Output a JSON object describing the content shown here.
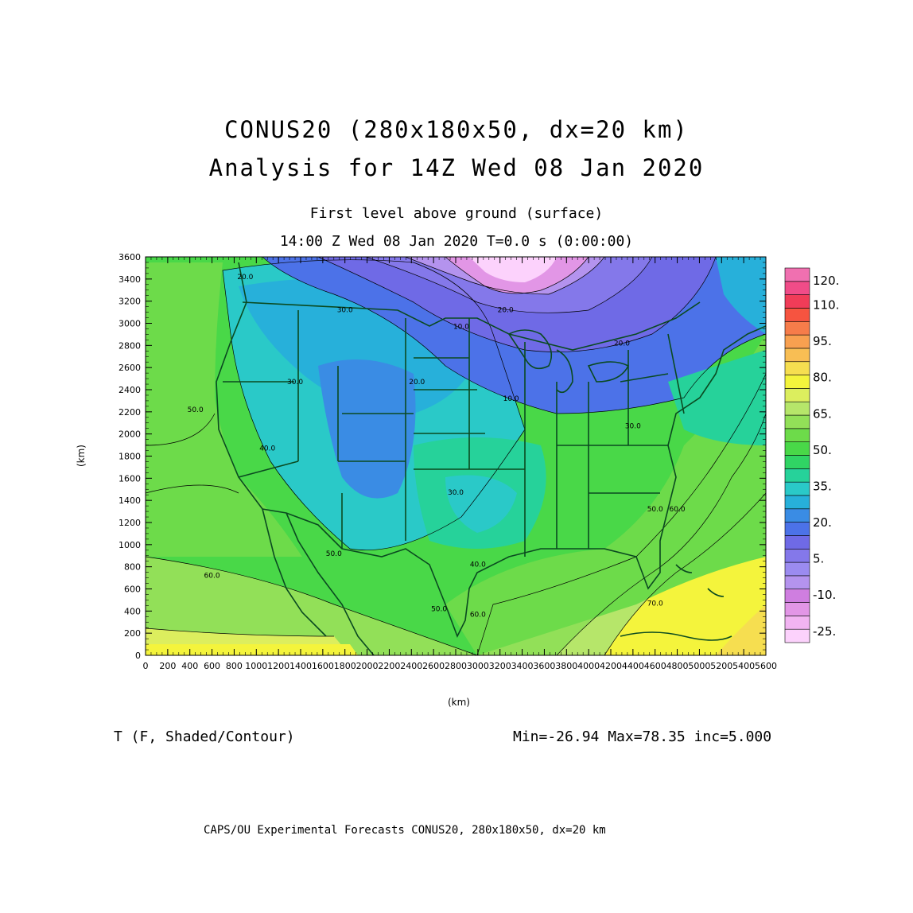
{
  "title_line1": "CONUS20 (280x180x50, dx=20 km)",
  "title_line2": "Analysis for 14Z Wed 08 Jan 2020",
  "subtitle_line1": "First level above ground (surface)",
  "subtitle_line2": "14:00 Z Wed 08 Jan 2020   T=0.0 s (0:00:00)",
  "field_label": "T (F, Shaded/Contour)",
  "stats": "Min=-26.94 Max=78.35 inc=5.000",
  "credit": "CAPS/OU Experimental Forecasts  CONUS20, 280x180x50, dx=20 km",
  "axes": {
    "x_label": "(km)",
    "y_label": "(km)",
    "x_ticks": [
      0,
      200,
      400,
      600,
      800,
      1000,
      1200,
      1400,
      1600,
      1800,
      2000,
      2200,
      2400,
      2600,
      2800,
      3000,
      3200,
      3400,
      3600,
      3800,
      4000,
      4200,
      4400,
      4600,
      4800,
      5000,
      5200,
      5400,
      5600
    ],
    "x_tick_labels": [
      "0",
      "200",
      "400",
      "600",
      "800",
      "1000",
      "1200",
      "1400",
      "1600",
      "1800",
      "2000",
      "2200",
      "2400",
      "2600",
      "2800",
      "3000",
      "3200",
      "3400",
      "3600",
      "3800",
      "4000",
      "4200",
      "4400",
      "4600",
      "4800",
      "5000",
      "5200",
      "5400",
      "5600"
    ],
    "y_ticks": [
      0,
      200,
      400,
      600,
      800,
      1000,
      1200,
      1400,
      1600,
      1800,
      2000,
      2200,
      2400,
      2600,
      2800,
      3000,
      3200,
      3400,
      3600
    ],
    "y_tick_labels": [
      "0",
      "200",
      "400",
      "600",
      "800",
      "1000",
      "1200",
      "1400",
      "1600",
      "1800",
      "2000",
      "2200",
      "2400",
      "2600",
      "2800",
      "3000",
      "3200",
      "3400",
      "3600"
    ],
    "xlim": [
      0,
      5600
    ],
    "ylim": [
      0,
      3600
    ]
  },
  "colorbar": {
    "colors": [
      "#fcd2fc",
      "#f2b4f2",
      "#e296e6",
      "#cf7ee0",
      "#b493ee",
      "#9b8bf0",
      "#8478ea",
      "#6f6ae6",
      "#4c72e8",
      "#3a8ce4",
      "#27b0da",
      "#2ac9c8",
      "#26d29a",
      "#30d464",
      "#49d848",
      "#6ddb4a",
      "#92e058",
      "#b6e66a",
      "#dcee5e",
      "#f4f43c",
      "#f6de50",
      "#f8be54",
      "#f8a050",
      "#f67c4a",
      "#f65440",
      "#f03c58",
      "#f04c88",
      "#f070b0"
    ],
    "labels": [
      {
        "value": -25,
        "text": "-25."
      },
      {
        "value": -10,
        "text": "-10."
      },
      {
        "value": 5,
        "text": "5."
      },
      {
        "value": 20,
        "text": "20."
      },
      {
        "value": 35,
        "text": "35."
      },
      {
        "value": 50,
        "text": "50."
      },
      {
        "value": 65,
        "text": "65."
      },
      {
        "value": 80,
        "text": "80."
      },
      {
        "value": 95,
        "text": "95."
      },
      {
        "value": 110,
        "text": "110."
      },
      {
        "value": 120,
        "text": "120."
      }
    ],
    "min": -30,
    "max": 125
  },
  "contour_labels": [
    {
      "text": "50.0",
      "x": 450,
      "y": 2200
    },
    {
      "text": "40.0",
      "x": 1100,
      "y": 1850
    },
    {
      "text": "30.0",
      "x": 1350,
      "y": 2450
    },
    {
      "text": "30.0",
      "x": 1800,
      "y": 3100
    },
    {
      "text": "20.0",
      "x": 900,
      "y": 3400
    },
    {
      "text": "20.0",
      "x": 2450,
      "y": 2450
    },
    {
      "text": "20.0",
      "x": 3250,
      "y": 3100
    },
    {
      "text": "10.0",
      "x": 2850,
      "y": 2950
    },
    {
      "text": "10.0",
      "x": 3300,
      "y": 2300
    },
    {
      "text": "20.0",
      "x": 4300,
      "y": 2800
    },
    {
      "text": "30.0",
      "x": 2800,
      "y": 1450
    },
    {
      "text": "30.0",
      "x": 4400,
      "y": 2050
    },
    {
      "text": "50.0",
      "x": 1700,
      "y": 900
    },
    {
      "text": "40.0",
      "x": 3000,
      "y": 800
    },
    {
      "text": "50.0",
      "x": 2650,
      "y": 400
    },
    {
      "text": "60.0",
      "x": 3000,
      "y": 350
    },
    {
      "text": "60.0",
      "x": 600,
      "y": 700
    },
    {
      "text": "50.0",
      "x": 4600,
      "y": 1300
    },
    {
      "text": "60.0",
      "x": 4800,
      "y": 1300
    },
    {
      "text": "70.0",
      "x": 4600,
      "y": 450
    }
  ]
}
